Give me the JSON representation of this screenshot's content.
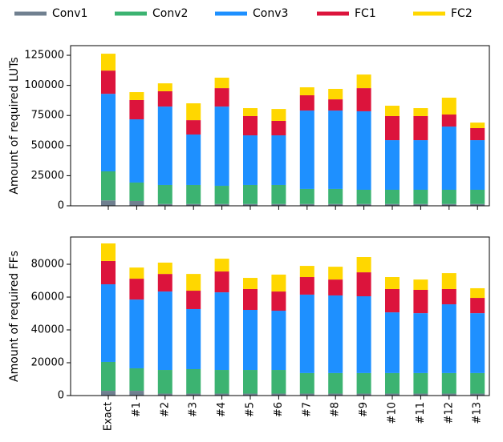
{
  "chart_data": [
    {
      "type": "bar",
      "stacked": true,
      "ylabel": "Amount of required LUTs",
      "ylim": [
        0,
        133000
      ],
      "yticks": [
        0,
        25000,
        50000,
        75000,
        100000,
        125000
      ],
      "series": [
        {
          "name": "Conv1",
          "color": "#708090",
          "values": [
            4500,
            4000,
            1500,
            1500,
            1500,
            1500,
            1500,
            1500,
            1500,
            1500,
            1500,
            1500,
            1500,
            1500
          ]
        },
        {
          "name": "Conv2",
          "color": "#3cb371",
          "values": [
            24100,
            15300,
            15800,
            15800,
            15100,
            15800,
            15800,
            12500,
            12500,
            11800,
            11800,
            11800,
            11800,
            11800
          ]
        },
        {
          "name": "Conv3",
          "color": "#1e90ff",
          "values": [
            64400,
            52500,
            65100,
            41900,
            65800,
            41200,
            41200,
            65100,
            65100,
            65200,
            41200,
            41200,
            52500,
            41200
          ]
        },
        {
          "name": "FC1",
          "color": "#dc143c",
          "values": [
            19300,
            16000,
            12700,
            11900,
            15300,
            16000,
            12000,
            12700,
            9300,
            19200,
            20000,
            20000,
            10000,
            10000
          ]
        },
        {
          "name": "FC2",
          "color": "#ffd700",
          "values": [
            14000,
            6600,
            6600,
            14000,
            8700,
            6600,
            9900,
            6600,
            8700,
            11300,
            8600,
            6600,
            14000,
            4600
          ]
        }
      ]
    },
    {
      "type": "bar",
      "stacked": true,
      "ylabel": "Amount of required FFs",
      "categories": [
        "Exact",
        "#1",
        "#2",
        "#3",
        "#4",
        "#5",
        "#6",
        "#7",
        "#8",
        "#9",
        "#10",
        "#11",
        "#12",
        "#13"
      ],
      "ylim": [
        0,
        96600
      ],
      "yticks": [
        0,
        20000,
        40000,
        60000,
        80000
      ],
      "series": [
        {
          "color": "#708090",
          "values": [
            2900,
            2900,
            1200,
            1200,
            1200,
            1200,
            1200,
            1200,
            1200,
            1200,
            1200,
            1200,
            1200,
            1200
          ]
        },
        {
          "color": "#3cb371",
          "values": [
            17600,
            13700,
            14400,
            14900,
            14400,
            14400,
            14400,
            12500,
            12500,
            12500,
            12500,
            12500,
            12500,
            12500
          ]
        },
        {
          "color": "#1e90ff",
          "values": [
            47300,
            41900,
            47800,
            36600,
            47300,
            36600,
            36100,
            47800,
            47300,
            46800,
            37000,
            36500,
            41900,
            36500
          ]
        },
        {
          "color": "#dc143c",
          "values": [
            14200,
            12700,
            10700,
            11200,
            12700,
            12700,
            11700,
            10700,
            9700,
            14600,
            14200,
            14200,
            9300,
            9300
          ]
        },
        {
          "color": "#ffd700",
          "values": [
            10700,
            6800,
            6900,
            10200,
            7800,
            6800,
            10300,
            6800,
            7800,
            9300,
            7300,
            6300,
            9700,
            5900
          ]
        }
      ]
    }
  ]
}
